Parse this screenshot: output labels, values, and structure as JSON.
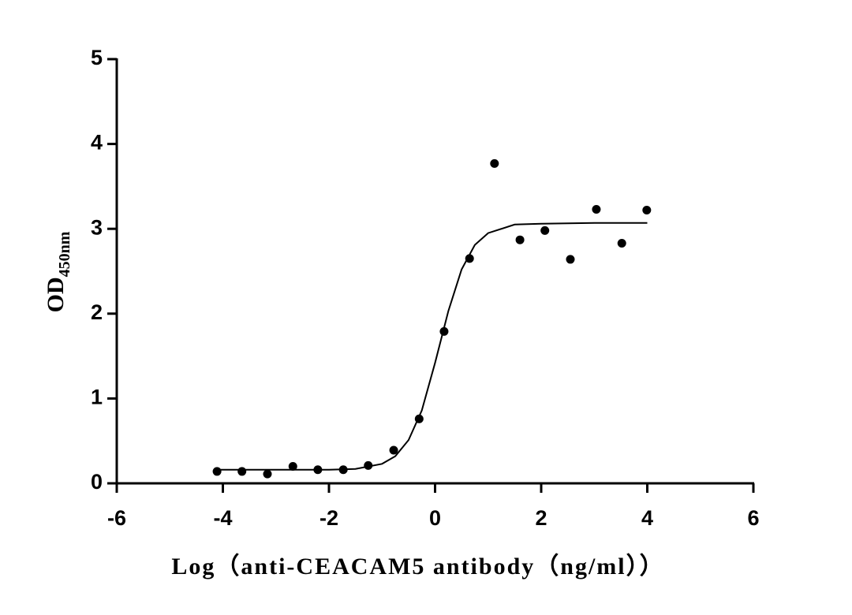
{
  "chart_data": {
    "type": "scatter",
    "xlabel": "Log（anti-CEACAM5 antibody（ng/ml））",
    "ylabel": "OD",
    "ylabel_sub": "450nm",
    "x": [
      -4.11,
      -3.64,
      -3.16,
      -2.68,
      -2.21,
      -1.73,
      -1.26,
      -0.78,
      -0.3,
      0.17,
      0.65,
      1.12,
      1.6,
      2.07,
      2.55,
      3.04,
      3.52,
      3.99
    ],
    "values": [
      0.14,
      0.14,
      0.11,
      0.2,
      0.16,
      0.16,
      0.21,
      0.39,
      0.76,
      1.79,
      2.65,
      3.77,
      2.87,
      2.98,
      2.64,
      3.23,
      2.83,
      3.22
    ],
    "fit": {
      "x": [
        -4.1,
        -3,
        -2,
        -1.5,
        -1,
        -0.75,
        -0.5,
        -0.25,
        0,
        0.25,
        0.5,
        0.75,
        1,
        1.5,
        2,
        3,
        4
      ],
      "values": [
        0.16,
        0.16,
        0.16,
        0.17,
        0.23,
        0.32,
        0.51,
        0.86,
        1.42,
        2.03,
        2.52,
        2.81,
        2.95,
        3.05,
        3.06,
        3.07,
        3.07
      ]
    },
    "color": "#000000",
    "xlim": [
      -6,
      6
    ],
    "xticks": [
      -6,
      -4,
      -2,
      0,
      2,
      4,
      6
    ],
    "ylim": [
      0,
      5
    ],
    "yticks": [
      0,
      1,
      2,
      3,
      4,
      5
    ],
    "grid": false
  }
}
